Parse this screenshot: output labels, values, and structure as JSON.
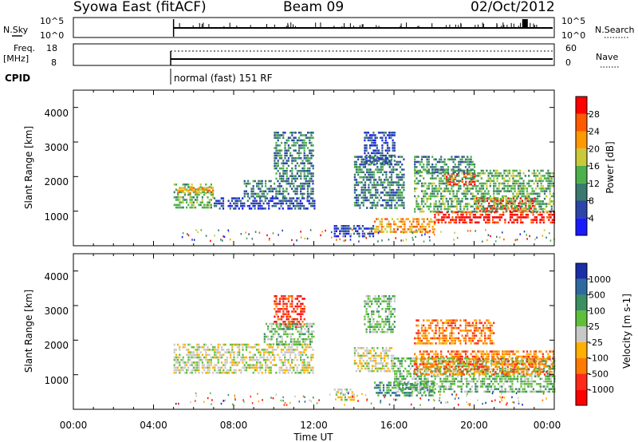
{
  "header": {
    "station": "Syowa East (fitACF)",
    "beam": "Beam 09",
    "date": "02/Oct/2012"
  },
  "side_labels": {
    "nsky": "N.Sky",
    "nsearch": "N.Search",
    "freq_line1": "Freq.",
    "freq_line2": "[MHz]",
    "nave": "Nave",
    "cpid": "CPID",
    "cpid_value": "normal (fast) 151 RF"
  },
  "noise_axis": {
    "left_top": "10^5",
    "left_bottom": "10^0",
    "right_top": "10^5",
    "right_bottom": "10^0"
  },
  "freq_axis": {
    "left_ticks": [
      "18",
      "8"
    ],
    "right_ticks": [
      "60",
      "0"
    ]
  },
  "range_axis": {
    "label": "Slant Range [km]",
    "ticks": [
      "1000",
      "2000",
      "3000",
      "4000"
    ],
    "ylim": [
      0,
      4500
    ]
  },
  "time_axis": {
    "label": "Time UT",
    "ticks": [
      "00:00",
      "04:00",
      "08:00",
      "12:00",
      "16:00",
      "20:00",
      "00:00"
    ],
    "xlim_hours": [
      0,
      24
    ]
  },
  "power_colorbar": {
    "label": "Power [dB]",
    "ticks": [
      "4",
      "8",
      "12",
      "16",
      "20",
      "24",
      "28"
    ],
    "colors": [
      "#1a1aff",
      "#2b45a8",
      "#3a7a6e",
      "#4cb04c",
      "#c9c93a",
      "#ff9900",
      "#ff5a00",
      "#ff0000"
    ]
  },
  "velocity_colorbar": {
    "label": "Velocity [m s-1]",
    "ticks": [
      "1000",
      "500",
      "100",
      "25",
      "-25",
      "-100",
      "-500",
      "-1000"
    ],
    "colors": [
      "#1a2ea8",
      "#2e6aa0",
      "#3c8f62",
      "#5fbf3a",
      "#c8c8c8",
      "#ffb000",
      "#ff7a00",
      "#ff2a1a",
      "#ff0000"
    ]
  },
  "chart_data": [
    {
      "type": "heatmap",
      "title": "Power",
      "xlabel": "Time UT",
      "ylabel": "Slant Range [km]",
      "xlim": [
        0,
        24
      ],
      "ylim": [
        0,
        4500
      ],
      "zlabel": "Power [dB]",
      "regions": [
        {
          "t0": 5.0,
          "t1": 7.0,
          "r0": 1100,
          "r1": 1800,
          "level": 3
        },
        {
          "t0": 5.0,
          "t1": 7.0,
          "r0": 1500,
          "r1": 1700,
          "level": 5
        },
        {
          "t0": 7.0,
          "t1": 12.0,
          "r0": 1050,
          "r1": 1400,
          "level": 1
        },
        {
          "t0": 8.5,
          "t1": 12.0,
          "r0": 1400,
          "r1": 1900,
          "level": 2
        },
        {
          "t0": 10.0,
          "t1": 12.0,
          "r0": 1900,
          "r1": 3300,
          "level": 2
        },
        {
          "t0": 13.0,
          "t1": 15.0,
          "r0": 300,
          "r1": 600,
          "level": 1
        },
        {
          "t0": 14.0,
          "t1": 16.5,
          "r0": 1100,
          "r1": 2600,
          "level": 2
        },
        {
          "t0": 14.5,
          "t1": 16.0,
          "r0": 2400,
          "r1": 3300,
          "level": 1
        },
        {
          "t0": 15.0,
          "t1": 18.0,
          "r0": 400,
          "r1": 800,
          "level": 5
        },
        {
          "t0": 18.0,
          "t1": 24.0,
          "r0": 700,
          "r1": 1000,
          "level": 7
        },
        {
          "t0": 20.0,
          "t1": 23.0,
          "r0": 1000,
          "r1": 1400,
          "level": 7
        },
        {
          "t0": 18.5,
          "t1": 20.0,
          "r0": 1800,
          "r1": 2100,
          "level": 7
        },
        {
          "t0": 17.0,
          "t1": 24.0,
          "r0": 1000,
          "r1": 2200,
          "level": 3
        },
        {
          "t0": 17.0,
          "t1": 20.0,
          "r0": 2100,
          "r1": 2600,
          "level": 2
        }
      ]
    },
    {
      "type": "heatmap",
      "title": "Velocity",
      "xlabel": "Time UT",
      "ylabel": "Slant Range [km]",
      "xlim": [
        0,
        24
      ],
      "ylim": [
        0,
        4500
      ],
      "zlabel": "Velocity [m s-1]",
      "regions": [
        {
          "t0": 5.0,
          "t1": 12.0,
          "r0": 1050,
          "r1": 1900,
          "level": 4
        },
        {
          "t0": 10.0,
          "t1": 11.5,
          "r0": 2400,
          "r1": 3300,
          "level": 7
        },
        {
          "t0": 9.5,
          "t1": 12.0,
          "r0": 1900,
          "r1": 2500,
          "level": 3
        },
        {
          "t0": 13.0,
          "t1": 14.0,
          "r0": 300,
          "r1": 600,
          "level": 4
        },
        {
          "t0": 14.0,
          "t1": 16.0,
          "r0": 1100,
          "r1": 1800,
          "level": 4
        },
        {
          "t0": 14.5,
          "t1": 16.0,
          "r0": 2200,
          "r1": 3300,
          "level": 3
        },
        {
          "t0": 15.0,
          "t1": 18.0,
          "r0": 400,
          "r1": 800,
          "level": 2
        },
        {
          "t0": 16.0,
          "t1": 24.0,
          "r0": 500,
          "r1": 1500,
          "level": 3
        },
        {
          "t0": 17.0,
          "t1": 24.0,
          "r0": 1000,
          "r1": 1700,
          "level": 6
        },
        {
          "t0": 17.0,
          "t1": 21.0,
          "r0": 1900,
          "r1": 2600,
          "level": 6
        }
      ]
    }
  ]
}
